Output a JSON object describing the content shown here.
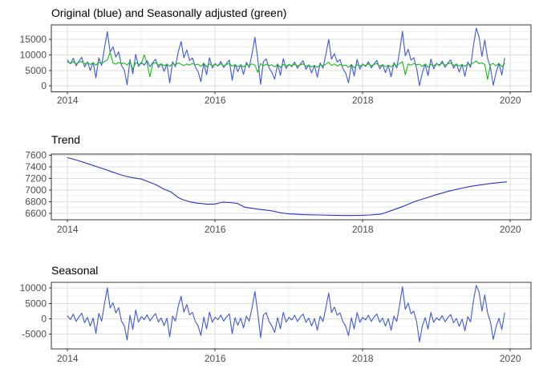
{
  "page": {
    "background": "#FFFFFF"
  },
  "styles": {
    "grid_major_color": "#DEDEDE",
    "grid_minor_color": "#F0F0F0",
    "panel_border_color": "#343434",
    "tick_color": "#343434",
    "tick_label_color": "#4D4D4D",
    "title_color": "#000000",
    "blue": "#3E58D8",
    "trend_blue": "#2633CF",
    "green": "#13BC13"
  },
  "chart_data": [
    {
      "type": "line",
      "title": "Original (blue) and Seasonally adjusted (green)",
      "xlabel": "",
      "ylabel": "",
      "xlim": [
        2013.78,
        2020.28
      ],
      "ylim": [
        -1890,
        19660
      ],
      "x_major_ticks": [
        2014,
        2016,
        2018,
        2020
      ],
      "x_minor_ticks": [
        2015,
        2017,
        2019
      ],
      "x_tick_labels": [
        "2014",
        "2016",
        "2018",
        "2020"
      ],
      "y_major_ticks": [
        0,
        5000,
        10000,
        15000
      ],
      "y_minor_ticks": [
        2500,
        7500,
        12500,
        17500
      ],
      "y_tick_labels": [
        "0",
        "5000",
        "10000",
        "15000"
      ],
      "grid": true,
      "legend": "none",
      "series": [
        {
          "name": "Original",
          "color": "#3E58D8",
          "x_start": 2014.0,
          "x_step": 0.0384615,
          "values": [
            8300,
            7100,
            8900,
            6500,
            7950,
            9200,
            6100,
            7800,
            5000,
            7600,
            2600,
            9100,
            6600,
            12100,
            17500,
            10900,
            12600,
            9300,
            11000,
            6600,
            5100,
            400,
            8500,
            3900,
            10200,
            6300,
            7600,
            6700,
            8200,
            6200,
            7500,
            8600,
            5900,
            7200,
            4700,
            7100,
            1000,
            7800,
            6200,
            10900,
            14300,
            9100,
            11600,
            8200,
            9000,
            6100,
            4600,
            1400,
            7400,
            3600,
            9100,
            5800,
            7200,
            6400,
            7900,
            5900,
            7300,
            8300,
            1800,
            7000,
            4600,
            6900,
            3700,
            7600,
            5900,
            10300,
            15600,
            8800,
            500,
            7900,
            8700,
            5800,
            4300,
            2200,
            7100,
            3400,
            8800,
            5600,
            7000,
            6200,
            7700,
            5700,
            7100,
            8100,
            5400,
            6800,
            4200,
            6600,
            2800,
            7400,
            5700,
            10000,
            15000,
            8600,
            10400,
            7700,
            8500,
            5600,
            4100,
            1000,
            6900,
            3200,
            8600,
            5400,
            7100,
            6300,
            7800,
            5800,
            7200,
            8200,
            5500,
            6900,
            4300,
            6700,
            2900,
            7500,
            5800,
            11200,
            17600,
            9700,
            11800,
            8300,
            9100,
            5600,
            100,
            4200,
            7000,
            3300,
            8700,
            5500,
            7300,
            6500,
            8000,
            6000,
            7400,
            8400,
            5700,
            7100,
            4500,
            6900,
            3100,
            7700,
            6000,
            12800,
            18600,
            15700,
            9500,
            14800,
            8900,
            5900,
            200,
            4400,
            7200,
            3500,
            8900
          ]
        },
        {
          "name": "Seasonally adjusted",
          "color": "#13BC13",
          "x_start": 2014.0,
          "x_step": 0.0384615,
          "values": [
            7700,
            7300,
            7800,
            7200,
            7600,
            7900,
            7100,
            7500,
            6900,
            7400,
            6700,
            7600,
            7200,
            7900,
            8300,
            10800,
            7400,
            7000,
            7600,
            7100,
            7400,
            6700,
            7800,
            5300,
            7500,
            7000,
            7100,
            10000,
            7400,
            2900,
            7200,
            7500,
            6700,
            7100,
            6500,
            7000,
            6300,
            7200,
            6800,
            7400,
            7000,
            6600,
            7100,
            6700,
            7200,
            6800,
            7000,
            6300,
            7300,
            6100,
            7100,
            6600,
            6900,
            6600,
            7100,
            6500,
            6900,
            7200,
            6400,
            6800,
            6200,
            6700,
            6100,
            6900,
            6600,
            7100,
            6700,
            4400,
            7200,
            6500,
            7000,
            6600,
            6800,
            6100,
            7000,
            5900,
            6900,
            6400,
            6800,
            6500,
            7000,
            6400,
            6800,
            7100,
            6300,
            6700,
            6100,
            6600,
            6000,
            6800,
            6500,
            7000,
            7600,
            6600,
            7100,
            6400,
            6900,
            6500,
            6700,
            6000,
            6900,
            5800,
            6800,
            6300,
            6900,
            6600,
            7100,
            6500,
            6900,
            7200,
            6400,
            6800,
            6200,
            6700,
            6100,
            6900,
            6600,
            7200,
            7800,
            3600,
            7100,
            6700,
            7200,
            6800,
            7000,
            6300,
            7100,
            6000,
            7000,
            6500,
            7100,
            6800,
            7300,
            6700,
            7100,
            7400,
            6600,
            7000,
            6400,
            6900,
            6300,
            7100,
            6800,
            7500,
            8000,
            7200,
            7400,
            6900,
            2100,
            6900,
            7200,
            6500,
            7300,
            6200,
            7200
          ]
        }
      ]
    },
    {
      "type": "line",
      "title": "Trend",
      "xlabel": "",
      "ylabel": "",
      "xlim": [
        2013.78,
        2020.28
      ],
      "ylim": [
        6487,
        7622
      ],
      "x_major_ticks": [
        2014,
        2016,
        2018,
        2020
      ],
      "x_minor_ticks": [
        2015,
        2017,
        2019
      ],
      "x_tick_labels": [
        "2014",
        "2016",
        "2018",
        "2020"
      ],
      "y_major_ticks": [
        6600,
        6800,
        7000,
        7200,
        7400,
        7600
      ],
      "y_minor_ticks": [
        6700,
        6900,
        7100,
        7300,
        7500
      ],
      "y_tick_labels": [
        "6600",
        "6800",
        "7000",
        "7200",
        "7400",
        "7600"
      ],
      "grid": true,
      "legend": "none",
      "series": [
        {
          "name": "Trend",
          "color": "#2633CF",
          "points": [
            [
              2014.0,
              7560
            ],
            [
              2014.1,
              7525
            ],
            [
              2014.2,
              7485
            ],
            [
              2014.3,
              7445
            ],
            [
              2014.4,
              7400
            ],
            [
              2014.5,
              7360
            ],
            [
              2014.6,
              7315
            ],
            [
              2014.7,
              7270
            ],
            [
              2014.8,
              7235
            ],
            [
              2014.9,
              7210
            ],
            [
              2015.0,
              7190
            ],
            [
              2015.1,
              7140
            ],
            [
              2015.2,
              7090
            ],
            [
              2015.3,
              7020
            ],
            [
              2015.4,
              6970
            ],
            [
              2015.5,
              6870
            ],
            [
              2015.55,
              6840
            ],
            [
              2015.65,
              6800
            ],
            [
              2015.75,
              6775
            ],
            [
              2015.9,
              6755
            ],
            [
              2016.0,
              6760
            ],
            [
              2016.1,
              6790
            ],
            [
              2016.2,
              6785
            ],
            [
              2016.3,
              6770
            ],
            [
              2016.4,
              6705
            ],
            [
              2016.5,
              6685
            ],
            [
              2016.6,
              6665
            ],
            [
              2016.75,
              6645
            ],
            [
              2016.9,
              6605
            ],
            [
              2017.0,
              6590
            ],
            [
              2017.2,
              6575
            ],
            [
              2017.4,
              6570
            ],
            [
              2017.6,
              6565
            ],
            [
              2017.8,
              6560
            ],
            [
              2018.0,
              6565
            ],
            [
              2018.1,
              6570
            ],
            [
              2018.25,
              6585
            ],
            [
              2018.4,
              6650
            ],
            [
              2018.55,
              6720
            ],
            [
              2018.7,
              6800
            ],
            [
              2018.85,
              6860
            ],
            [
              2019.0,
              6920
            ],
            [
              2019.15,
              6975
            ],
            [
              2019.3,
              7020
            ],
            [
              2019.45,
              7060
            ],
            [
              2019.6,
              7090
            ],
            [
              2019.75,
              7115
            ],
            [
              2019.9,
              7135
            ],
            [
              2019.95,
              7140
            ]
          ]
        }
      ]
    },
    {
      "type": "line",
      "title": "Seasonal",
      "xlabel": "",
      "ylabel": "",
      "xlim": [
        2013.78,
        2020.28
      ],
      "ylim": [
        -9900,
        11900
      ],
      "x_major_ticks": [
        2014,
        2016,
        2018,
        2020
      ],
      "x_minor_ticks": [
        2015,
        2017,
        2019
      ],
      "x_tick_labels": [
        "2014",
        "2016",
        "2018",
        "2020"
      ],
      "y_major_ticks": [
        -5000,
        0,
        5000,
        10000
      ],
      "y_minor_ticks": [
        -7500,
        -2500,
        2500,
        7500
      ],
      "y_tick_labels": [
        "-5000",
        "0",
        "5000",
        "10000"
      ],
      "grid": true,
      "legend": "none",
      "series": [
        {
          "name": "Seasonal",
          "color": "#3E58D8",
          "x_start": 2014.0,
          "x_step": 0.0384615,
          "values": [
            900,
            -300,
            1500,
            -900,
            550,
            1800,
            -1300,
            400,
            -2400,
            200,
            -4800,
            1700,
            -800,
            4700,
            10100,
            3500,
            5200,
            1900,
            3600,
            -800,
            -2300,
            -7000,
            1100,
            -3500,
            2800,
            -1100,
            650,
            -250,
            1250,
            -750,
            550,
            1650,
            -1050,
            250,
            -2250,
            150,
            -5950,
            850,
            -750,
            3950,
            7350,
            2150,
            4650,
            1250,
            2050,
            -850,
            -2350,
            -5550,
            450,
            -3350,
            2150,
            -1150,
            480,
            -320,
            1180,
            -820,
            580,
            1580,
            -4920,
            280,
            -2120,
            180,
            -3020,
            880,
            -820,
            3580,
            8880,
            2080,
            -6220,
            1180,
            1980,
            -920,
            -2420,
            -4520,
            380,
            -3320,
            2080,
            -1120,
            420,
            -380,
            1120,
            -880,
            520,
            1520,
            -1180,
            220,
            -2380,
            20,
            -3780,
            820,
            -880,
            3420,
            8420,
            2020,
            3820,
            1120,
            1920,
            -980,
            -2480,
            -5580,
            320,
            -3380,
            2020,
            -1180,
            420,
            -380,
            1120,
            -880,
            520,
            1520,
            -1180,
            220,
            -2380,
            20,
            -3780,
            820,
            -880,
            4520,
            10400,
            3020,
            5120,
            1620,
            2420,
            -1080,
            -7600,
            -2480,
            320,
            -3380,
            2020,
            -1180,
            270,
            -530,
            970,
            -1030,
            370,
            1370,
            -1330,
            70,
            -2530,
            -130,
            -3930,
            670,
            -1030,
            5770,
            10900,
            8670,
            2470,
            7770,
            1870,
            -1130,
            -6830,
            -2630,
            170,
            -3530,
            1870
          ]
        }
      ]
    }
  ]
}
